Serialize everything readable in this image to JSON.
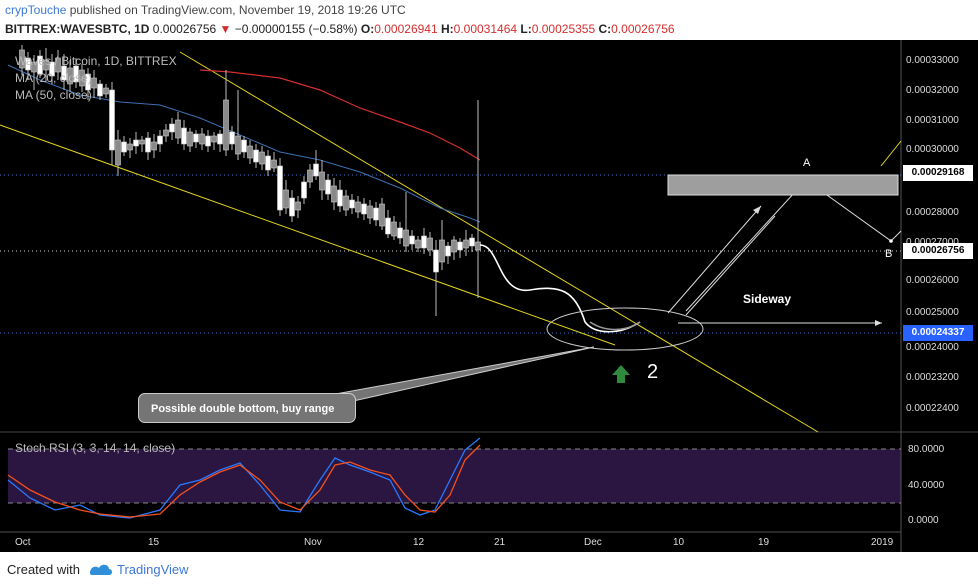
{
  "header": {
    "username": "crypTouche",
    "published_text": " published on TradingView.com, November 19, 2018 19:26 UTC",
    "symbol": "BITTREX:WAVESBTC, 1D",
    "last": "0.00026756",
    "change_arrow": "▼",
    "change": "−0.00000155 (−0.58%)",
    "o_label": "O:",
    "o_value": "0.00026941",
    "h_label": "H:",
    "h_value": "0.00031464",
    "l_label": "L:",
    "l_value": "0.00025355",
    "c_label": "C:",
    "c_value": "0.00026756"
  },
  "legend": {
    "series": "Waves / Bitcoin, 1D, BITTREX",
    "ma20": "MA (20, close)",
    "ma50": "MA (50, close)",
    "stoch": "Stoch RSI (3, 3, 14, 14, close)"
  },
  "price_axis": {
    "ticks": [
      "0.00033000",
      "0.00032000",
      "0.00031000",
      "0.00030000",
      "0.00028000",
      "0.00027000",
      "0.00026000",
      "0.00025000",
      "0.00024000",
      "0.00023200",
      "0.00022400"
    ],
    "tag_resistance": "0.00029168",
    "tag_last": "0.00026756",
    "tag_support": "0.00024337"
  },
  "stoch_axis": {
    "ticks": [
      "80.0000",
      "40.0000",
      "0.0000"
    ]
  },
  "date_axis": {
    "ticks": [
      "Oct",
      "15",
      "Nov",
      "12",
      "21",
      "Dec",
      "10",
      "19",
      "2019"
    ]
  },
  "annotations": {
    "callout": "Possible double bottom, buy range",
    "sideway": "Sideway",
    "point_a": "A",
    "point_b": "B",
    "number": "2"
  },
  "footer": {
    "created_with": "Created with",
    "brand": "TradingView"
  },
  "colors": {
    "background": "#000000",
    "ma20": "#3d6fb0",
    "ma50": "#d32f2f",
    "trendline": "#e6d619",
    "tag_blue": "#2962ff",
    "stoch_k": "#2979ff",
    "stoch_d": "#f4511e",
    "stoch_band": "#2a1640",
    "arrow_up": "#2e7d32"
  }
}
